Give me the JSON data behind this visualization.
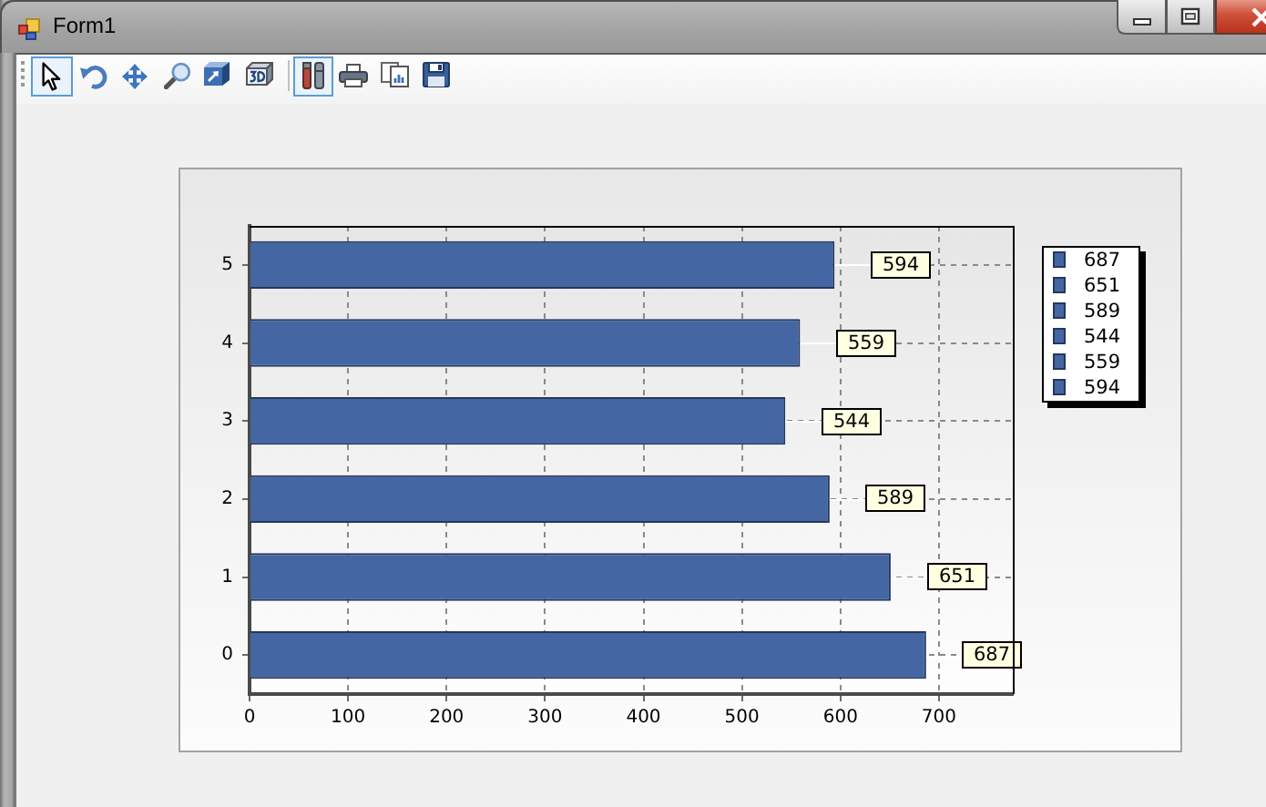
{
  "chart_data": {
    "type": "bar",
    "orientation": "horizontal",
    "categories": [
      "5",
      "4",
      "3",
      "2",
      "1",
      "0"
    ],
    "values": [
      594,
      559,
      544,
      589,
      651,
      687
    ],
    "color": "#4466a3",
    "xlim": [
      0,
      775
    ],
    "xticks": [
      0,
      100,
      200,
      300,
      400,
      500,
      600,
      700
    ],
    "grid": true,
    "data_labels": true,
    "annotations": [
      "Form1",
      "687",
      "651",
      "589",
      "544",
      "559",
      "594"
    ]
  }
}
